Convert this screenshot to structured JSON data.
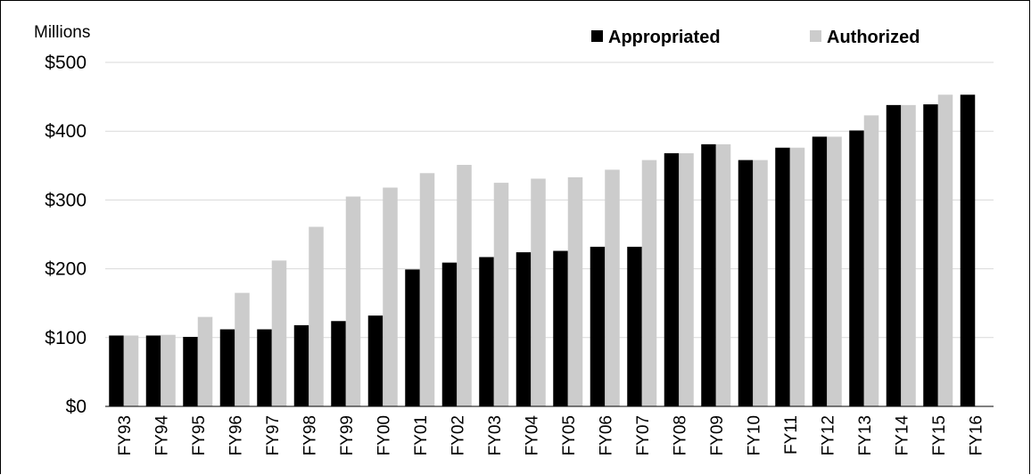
{
  "chart_data": {
    "type": "bar",
    "unit_label": "Millions",
    "categories": [
      "FY93",
      "FY94",
      "FY95",
      "FY96",
      "FY97",
      "FY98",
      "FY99",
      "FY00",
      "FY01",
      "FY02",
      "FY03",
      "FY04",
      "FY05",
      "FY06",
      "FY07",
      "FY08",
      "FY09",
      "FY10",
      "FY11",
      "FY12",
      "FY13",
      "FY14",
      "FY15",
      "FY16"
    ],
    "series": [
      {
        "name": "Appropriated",
        "color": "#000000",
        "values": [
          103,
          103,
          101,
          112,
          112,
          118,
          124,
          132,
          199,
          209,
          217,
          224,
          226,
          232,
          232,
          368,
          381,
          358,
          376,
          392,
          401,
          438,
          439,
          453
        ]
      },
      {
        "name": "Authorized",
        "color": "#cccccc",
        "values": [
          103,
          104,
          130,
          165,
          212,
          261,
          305,
          318,
          339,
          351,
          325,
          331,
          333,
          344,
          358,
          368,
          381,
          358,
          376,
          392,
          423,
          438,
          453,
          null
        ]
      }
    ],
    "yticks": [
      "$0",
      "$100",
      "$200",
      "$300",
      "$400",
      "$500"
    ],
    "ylim": [
      0,
      500
    ],
    "grid": true,
    "legend_position": "top-right"
  }
}
